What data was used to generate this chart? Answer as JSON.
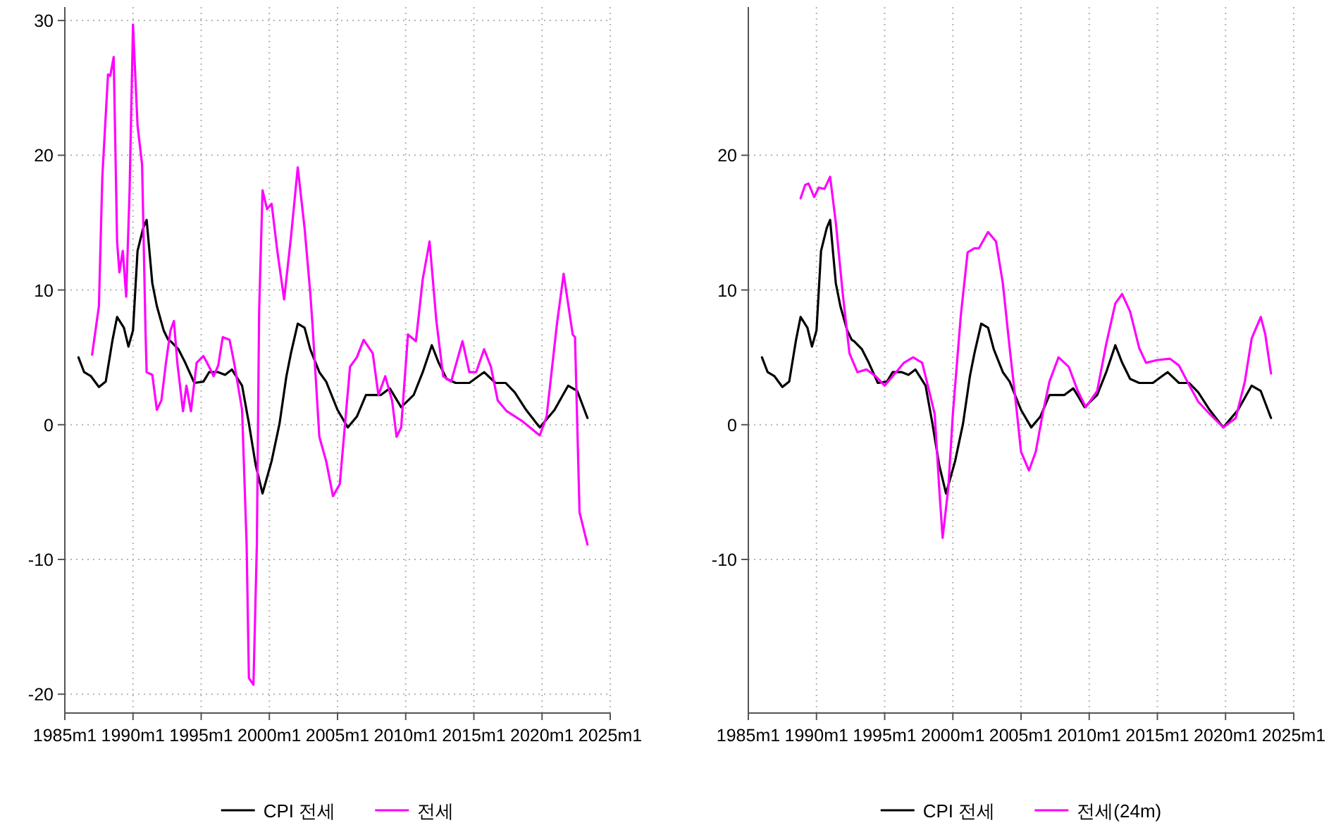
{
  "chart_data": [
    {
      "type": "line",
      "xlim": [
        "1985-01",
        "2025-01"
      ],
      "ylim": [
        -21.4,
        31
      ],
      "grid": true,
      "legend": "bottom",
      "xticks": [
        {
          "value": "1985-01",
          "label": "1985m1"
        },
        {
          "value": "1990-01",
          "label": "1990m1"
        },
        {
          "value": "1995-01",
          "label": "1995m1"
        },
        {
          "value": "2000-01",
          "label": "2000m1"
        },
        {
          "value": "2005-01",
          "label": "2005m1"
        },
        {
          "value": "2010-01",
          "label": "2010m1"
        },
        {
          "value": "2015-01",
          "label": "2015m1"
        },
        {
          "value": "2020-01",
          "label": "2020m1"
        },
        {
          "value": "2025-01",
          "label": "2025m1"
        }
      ],
      "yticks": [
        -20,
        -10,
        0,
        10,
        20,
        30
      ],
      "series": [
        {
          "name": "CPI 전세",
          "color": "#000000",
          "x": [
            "1986-01",
            "1986-06",
            "1986-12",
            "1987-07",
            "1988-01",
            "1988-07",
            "1988-11",
            "1989-05",
            "1989-09",
            "1990-01",
            "1990-05",
            "1990-10",
            "1991-01",
            "1991-06",
            "1991-10",
            "1992-04",
            "1992-08",
            "1992-10",
            "1993-05",
            "1993-11",
            "1994-07",
            "1995-03",
            "1995-08",
            "1996-04",
            "1996-10",
            "1997-04",
            "1998-01",
            "1998-07",
            "1999-01",
            "1999-07",
            "2000-03",
            "2000-10",
            "2001-04",
            "2001-08",
            "2002-02",
            "2002-08",
            "2003-01",
            "2003-09",
            "2004-03",
            "2005-01",
            "2005-10",
            "2006-06",
            "2007-02",
            "2008-03",
            "2008-11",
            "2009-09",
            "2010-08",
            "2011-04",
            "2011-12",
            "2012-06",
            "2013-01",
            "2013-09",
            "2014-09",
            "2015-05",
            "2015-10",
            "2016-08",
            "2017-05",
            "2018-01",
            "2018-11",
            "2019-11",
            "2020-12",
            "2021-12",
            "2022-08",
            "2023-05"
          ],
          "values": [
            5.0,
            3.9,
            3.6,
            2.8,
            3.2,
            6.3,
            8.0,
            7.2,
            5.8,
            7.0,
            12.9,
            14.6,
            15.2,
            10.5,
            8.8,
            7.0,
            6.3,
            6.2,
            5.6,
            4.6,
            3.1,
            3.2,
            3.9,
            3.9,
            3.7,
            4.1,
            2.9,
            0.1,
            -3.0,
            -5.1,
            -2.7,
            0.1,
            3.6,
            5.3,
            7.5,
            7.2,
            5.6,
            3.9,
            3.2,
            1.1,
            -0.2,
            0.6,
            2.2,
            2.2,
            2.7,
            1.3,
            2.2,
            3.9,
            5.9,
            4.6,
            3.4,
            3.1,
            3.1,
            3.6,
            3.9,
            3.1,
            3.1,
            2.4,
            1.1,
            -0.2,
            1.1,
            2.9,
            2.5,
            0.5
          ]
        },
        {
          "name": "전세",
          "color": "#ff00ff",
          "x": [
            "1987-01",
            "1987-04",
            "1987-07",
            "1987-10",
            "1988-03",
            "1988-05",
            "1988-08",
            "1988-11",
            "1989-01",
            "1989-04",
            "1989-07",
            "1989-10",
            "1990-01",
            "1990-05",
            "1990-09",
            "1990-12",
            "1991-01",
            "1991-06",
            "1991-10",
            "1992-02",
            "1992-06",
            "1992-10",
            "1993-01",
            "1993-04",
            "1993-09",
            "1993-12",
            "1994-04",
            "1994-09",
            "1995-03",
            "1995-08",
            "1995-12",
            "1996-04",
            "1996-08",
            "1997-02",
            "1997-06",
            "1998-01",
            "1998-05",
            "1998-07",
            "1998-11",
            "1999-02",
            "1999-04",
            "1999-07",
            "1999-11",
            "2000-03",
            "2000-08",
            "2001-02",
            "2001-08",
            "2002-02",
            "2002-08",
            "2003-01",
            "2003-03",
            "2003-09",
            "2004-03",
            "2004-09",
            "2005-03",
            "2005-12",
            "2006-06",
            "2006-12",
            "2007-08",
            "2008-01",
            "2008-07",
            "2009-01",
            "2009-05",
            "2009-09",
            "2010-03",
            "2010-10",
            "2011-04",
            "2011-10",
            "2012-04",
            "2012-10",
            "2013-05",
            "2014-03",
            "2014-09",
            "2015-03",
            "2015-10",
            "2016-04",
            "2016-10",
            "2017-06",
            "2018-07",
            "2019-11",
            "2020-05",
            "2021-02",
            "2021-08",
            "2022-04",
            "2022-06",
            "2022-10",
            "2023-05"
          ],
          "values": [
            5.2,
            7.0,
            8.8,
            18.4,
            26.0,
            25.9,
            27.3,
            13.6,
            11.3,
            12.9,
            9.5,
            17.4,
            29.7,
            22.2,
            19.3,
            7.0,
            3.9,
            3.7,
            1.1,
            1.8,
            4.6,
            7.0,
            7.7,
            4.6,
            1.0,
            2.9,
            1.0,
            4.6,
            5.1,
            4.3,
            3.6,
            4.4,
            6.5,
            6.3,
            4.6,
            1.1,
            -8.9,
            -18.8,
            -19.3,
            -8.9,
            8.4,
            17.4,
            16.0,
            16.4,
            12.9,
            9.3,
            13.9,
            19.1,
            14.6,
            9.8,
            7.4,
            -0.9,
            -2.7,
            -5.3,
            -4.4,
            4.3,
            5.0,
            6.3,
            5.3,
            2.2,
            3.6,
            1.8,
            -0.9,
            -0.2,
            6.7,
            6.2,
            10.8,
            13.6,
            7.7,
            3.6,
            3.2,
            6.2,
            3.9,
            3.9,
            5.6,
            4.3,
            1.8,
            1.0,
            0.3,
            -0.8,
            0.6,
            7.4,
            11.2,
            6.7,
            6.5,
            -6.5,
            -8.9
          ]
        }
      ]
    },
    {
      "type": "line",
      "xlim": [
        "1985-01",
        "2025-01"
      ],
      "ylim": [
        -21.4,
        31
      ],
      "grid": true,
      "legend": "bottom",
      "xticks": [
        {
          "value": "1985-01",
          "label": "1985m1"
        },
        {
          "value": "1990-01",
          "label": "1990m1"
        },
        {
          "value": "1995-01",
          "label": "1995m1"
        },
        {
          "value": "2000-01",
          "label": "2000m1"
        },
        {
          "value": "2005-01",
          "label": "2005m1"
        },
        {
          "value": "2010-01",
          "label": "2010m1"
        },
        {
          "value": "2015-01",
          "label": "2015m1"
        },
        {
          "value": "2020-01",
          "label": "2020m1"
        },
        {
          "value": "2025-01",
          "label": "2025m1"
        }
      ],
      "yticks": [
        -10,
        0,
        10,
        20
      ],
      "series": [
        {
          "name": "CPI 전세",
          "color": "#000000",
          "x": [
            "1986-01",
            "1986-06",
            "1986-12",
            "1987-07",
            "1988-01",
            "1988-07",
            "1988-11",
            "1989-05",
            "1989-09",
            "1990-01",
            "1990-05",
            "1990-10",
            "1991-01",
            "1991-06",
            "1991-10",
            "1992-04",
            "1992-08",
            "1992-10",
            "1993-05",
            "1993-11",
            "1994-07",
            "1995-03",
            "1995-08",
            "1996-04",
            "1996-10",
            "1997-04",
            "1998-01",
            "1998-07",
            "1999-01",
            "1999-07",
            "2000-03",
            "2000-10",
            "2001-04",
            "2001-08",
            "2002-02",
            "2002-08",
            "2003-01",
            "2003-09",
            "2004-03",
            "2005-01",
            "2005-10",
            "2006-06",
            "2007-02",
            "2008-03",
            "2008-11",
            "2009-09",
            "2010-08",
            "2011-04",
            "2011-12",
            "2012-06",
            "2013-01",
            "2013-09",
            "2014-09",
            "2015-05",
            "2015-10",
            "2016-08",
            "2017-05",
            "2018-01",
            "2018-11",
            "2019-11",
            "2020-12",
            "2021-12",
            "2022-08",
            "2023-05"
          ],
          "values": [
            5.0,
            3.9,
            3.6,
            2.8,
            3.2,
            6.3,
            8.0,
            7.2,
            5.8,
            7.0,
            12.9,
            14.6,
            15.2,
            10.5,
            8.8,
            7.0,
            6.3,
            6.2,
            5.6,
            4.6,
            3.1,
            3.2,
            3.9,
            3.9,
            3.7,
            4.1,
            2.9,
            0.1,
            -3.0,
            -5.1,
            -2.7,
            0.1,
            3.6,
            5.3,
            7.5,
            7.2,
            5.6,
            3.9,
            3.2,
            1.1,
            -0.2,
            0.6,
            2.2,
            2.2,
            2.7,
            1.3,
            2.2,
            3.9,
            5.9,
            4.6,
            3.4,
            3.1,
            3.1,
            3.6,
            3.9,
            3.1,
            3.1,
            2.4,
            1.1,
            -0.2,
            1.1,
            2.9,
            2.5,
            0.5
          ]
        },
        {
          "name": "전세(24m)",
          "color": "#ff00ff",
          "x": [
            "1988-11",
            "1989-03",
            "1989-06",
            "1989-11",
            "1990-03",
            "1990-08",
            "1991-01",
            "1991-06",
            "1991-12",
            "1992-06",
            "1993-01",
            "1993-09",
            "1994-05",
            "1995-01",
            "1995-10",
            "1996-06",
            "1997-02",
            "1997-10",
            "1998-03",
            "1998-09",
            "1999-01",
            "1999-04",
            "1999-09",
            "2000-01",
            "2000-08",
            "2001-02",
            "2001-08",
            "2001-12",
            "2002-08",
            "2003-03",
            "2003-09",
            "2004-03",
            "2004-09",
            "2005-01",
            "2005-08",
            "2006-02",
            "2006-08",
            "2007-02",
            "2007-10",
            "2008-07",
            "2009-03",
            "2009-10",
            "2010-08",
            "2011-04",
            "2011-12",
            "2012-06",
            "2013-01",
            "2013-09",
            "2014-03",
            "2015-01",
            "2015-12",
            "2016-08",
            "2017-04",
            "2018-01",
            "2018-11",
            "2019-11",
            "2020-10",
            "2021-06",
            "2021-12",
            "2022-08",
            "2022-12",
            "2023-05"
          ],
          "values": [
            16.8,
            17.8,
            17.9,
            16.9,
            17.6,
            17.5,
            18.4,
            15.0,
            9.8,
            5.3,
            3.9,
            4.1,
            3.6,
            2.9,
            3.8,
            4.6,
            5.0,
            4.6,
            2.9,
            0.8,
            -4.7,
            -8.4,
            -4.7,
            0.8,
            8.1,
            12.8,
            13.1,
            13.1,
            14.3,
            13.6,
            10.5,
            5.7,
            1.2,
            -2.0,
            -3.4,
            -2.0,
            0.8,
            3.2,
            5.0,
            4.3,
            2.5,
            1.3,
            2.5,
            6.0,
            9.0,
            9.7,
            8.4,
            5.7,
            4.6,
            4.8,
            4.9,
            4.4,
            3.1,
            1.7,
            0.8,
            -0.2,
            0.5,
            3.2,
            6.4,
            8.0,
            6.7,
            3.8
          ]
        }
      ]
    }
  ]
}
